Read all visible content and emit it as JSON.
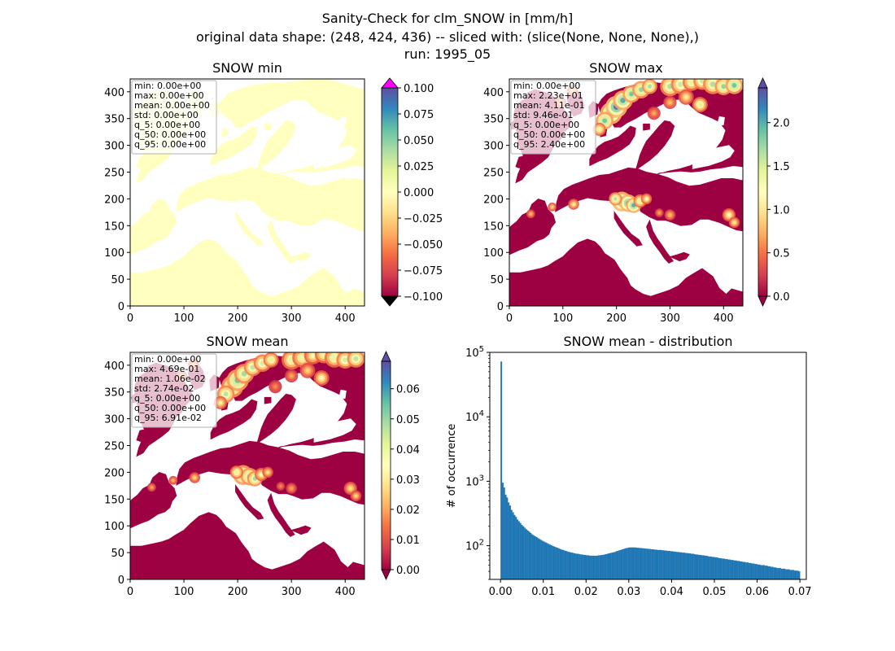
{
  "suptitle": {
    "line1": "Sanity-Check for clm_SNOW in [mm/h]",
    "line2": "original data shape: (248, 424, 436) -- sliced with: (slice(None, None, None),)",
    "line3": "run: 1995_05"
  },
  "colors": {
    "sea": "#ffffff",
    "snow_min_land": "#ffffbf",
    "cmap": [
      "#9e0142",
      "#d53e4f",
      "#f46d43",
      "#fdae61",
      "#fee08b",
      "#ffffbf",
      "#e6f598",
      "#abdda4",
      "#66c2a5",
      "#3288bd",
      "#5e4fa2"
    ],
    "over_marker": "#ff00ff",
    "under_marker": "#000000",
    "hist_bar": "#1f77b4"
  },
  "chart_data": [
    {
      "type": "heatmap",
      "title": "SNOW min",
      "xlim": [
        0,
        436
      ],
      "ylim": [
        0,
        424
      ],
      "xticks": [
        0,
        100,
        200,
        300,
        400
      ],
      "yticks": [
        0,
        50,
        100,
        150,
        200,
        250,
        300,
        350,
        400
      ],
      "field": "constant zero over land",
      "colorbar": {
        "range": [
          -0.1,
          0.1
        ],
        "extend": "both",
        "ticks": [
          "0.100",
          "0.075",
          "0.050",
          "0.025",
          "0.000",
          "−0.025",
          "−0.050",
          "−0.075",
          "−0.100"
        ]
      },
      "stats": [
        "min: 0.00e+00",
        "max: 0.00e+00",
        "mean: 0.00e+00",
        "std: 0.00e+00",
        "q_5: 0.00e+00",
        "q_50: 0.00e+00",
        "q_95: 0.00e+00"
      ]
    },
    {
      "type": "heatmap",
      "title": "SNOW max",
      "xlim": [
        0,
        436
      ],
      "ylim": [
        0,
        424
      ],
      "xticks": [
        0,
        100,
        200,
        300,
        400
      ],
      "yticks": [
        0,
        50,
        100,
        150,
        200,
        250,
        300,
        350,
        400
      ],
      "colorbar": {
        "range": [
          0,
          2.4
        ],
        "extend": "both",
        "ticks": [
          "2.0",
          "1.5",
          "1.0",
          "0.5",
          "0.0"
        ]
      },
      "stats": [
        "min: 0.00e+00",
        "max: 2.23e+01",
        "mean: 4.11e-01",
        "std: 9.46e-01",
        "q_5: 0.00e+00",
        "q_50: 0.00e+00",
        "q_95: 2.40e+00"
      ]
    },
    {
      "type": "heatmap",
      "title": "SNOW mean",
      "xlim": [
        0,
        436
      ],
      "ylim": [
        0,
        424
      ],
      "xticks": [
        0,
        100,
        200,
        300,
        400
      ],
      "yticks": [
        0,
        50,
        100,
        150,
        200,
        250,
        300,
        350,
        400
      ],
      "colorbar": {
        "range": [
          0,
          0.0691
        ],
        "extend": "both",
        "ticks": [
          "0.06",
          "0.05",
          "0.04",
          "0.03",
          "0.02",
          "0.01",
          "0.00"
        ]
      },
      "stats": [
        "min: 0.00e+00",
        "max: 4.69e-01",
        "mean: 1.06e-02",
        "std: 2.74e-02",
        "q_5: 0.00e+00",
        "q_50: 0.00e+00",
        "q_95: 6.91e-02"
      ]
    },
    {
      "type": "bar",
      "title": "SNOW mean - distribution",
      "ylabel": "# of occurrence",
      "xlabel": "",
      "yscale": "log",
      "xlim": [
        -0.0025,
        0.0715
      ],
      "ylim": [
        30,
        100000
      ],
      "xticks": [
        "0.00",
        "0.01",
        "0.02",
        "0.03",
        "0.04",
        "0.05",
        "0.06",
        "0.07"
      ],
      "yticks": [
        "10^2",
        "10^3",
        "10^4",
        "10^5"
      ],
      "bin_start": 0.0,
      "bin_width": 0.000345,
      "counts": [
        72000,
        950,
        800,
        620,
        560,
        470,
        420,
        360,
        330,
        300,
        280,
        255,
        240,
        225,
        210,
        200,
        190,
        180,
        172,
        165,
        158,
        150,
        145,
        140,
        136,
        131,
        127,
        123,
        119,
        116,
        113,
        110,
        107,
        104,
        102,
        99,
        97,
        95,
        93,
        91,
        89,
        87,
        86,
        84,
        83,
        81,
        80,
        79,
        78,
        77,
        76,
        75,
        75,
        74,
        73,
        73,
        72,
        72,
        71,
        71,
        70,
        70,
        70,
        70,
        70,
        70,
        71,
        71,
        72,
        72,
        73,
        74,
        75,
        76,
        77,
        78,
        79,
        80,
        82,
        83,
        85,
        86,
        88,
        89,
        91,
        92,
        93,
        94,
        94,
        94,
        94,
        94,
        93,
        93,
        92,
        92,
        91,
        91,
        90,
        90,
        89,
        89,
        88,
        88,
        87,
        87,
        86,
        86,
        86,
        85,
        85,
        84,
        84,
        83,
        83,
        82,
        82,
        81,
        81,
        80,
        80,
        79,
        79,
        78,
        78,
        77,
        77,
        76,
        76,
        75,
        75,
        74,
        73,
        73,
        72,
        72,
        71,
        71,
        70,
        70,
        69,
        68,
        68,
        67,
        67,
        66,
        66,
        65,
        64,
        64,
        63,
        63,
        62,
        62,
        61,
        61,
        60,
        60,
        59,
        59,
        58,
        58,
        57,
        57,
        56,
        56,
        55,
        55,
        54,
        54,
        53,
        53,
        52,
        52,
        51,
        51,
        50,
        50,
        50,
        49,
        49,
        48,
        48,
        47,
        47,
        46,
        46,
        45,
        45,
        45,
        44,
        44,
        44,
        43,
        43,
        43,
        42,
        42,
        42,
        41,
        41,
        41,
        40
      ]
    }
  ]
}
